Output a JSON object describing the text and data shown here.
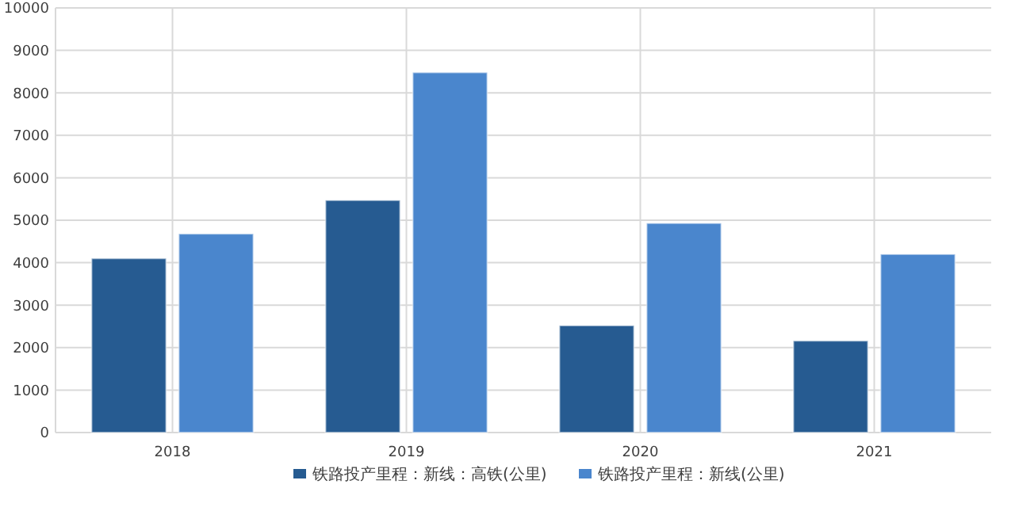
{
  "chart_data": {
    "type": "bar",
    "categories": [
      "2018",
      "2019",
      "2020",
      "2021"
    ],
    "series": [
      {
        "name": "铁路投产里程：新线：高铁(公里)",
        "color": "#265b91",
        "values": [
          4100,
          5470,
          2520,
          2160
        ]
      },
      {
        "name": "铁路投产里程：新线(公里)",
        "color": "#4a86cd",
        "values": [
          4680,
          8480,
          4930,
          4200
        ]
      }
    ],
    "ylim": [
      0,
      10000
    ],
    "yticks": [
      0,
      1000,
      2000,
      3000,
      4000,
      5000,
      6000,
      7000,
      8000,
      9000,
      10000
    ],
    "grid": true,
    "legend": "bottom"
  }
}
